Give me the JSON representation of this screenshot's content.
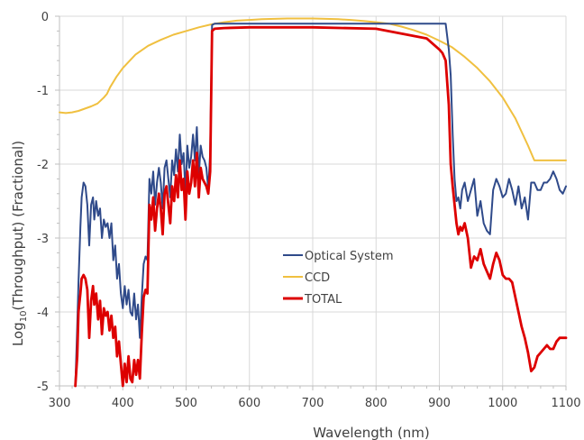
{
  "chart_data": {
    "type": "line",
    "title": "",
    "xlabel": "Wavelength (nm)",
    "ylabel_prefix": "Log",
    "ylabel_sub": "10",
    "ylabel_suffix": "(Throughput) (Fractional)",
    "xlim": [
      300,
      1100
    ],
    "ylim": [
      -5,
      0
    ],
    "xticks": [
      300,
      400,
      500,
      600,
      700,
      800,
      900,
      1000,
      1100
    ],
    "yticks": [
      0,
      -1,
      -2,
      -3,
      -4,
      -5
    ],
    "grid": true,
    "legend_position": "center",
    "series": [
      {
        "name": "Optical System",
        "color": "#2f4a8a",
        "x": [
          325,
          328,
          330,
          333,
          335,
          338,
          341,
          344,
          347,
          350,
          353,
          355,
          358,
          361,
          364,
          367,
          370,
          373,
          376,
          379,
          382,
          385,
          388,
          391,
          394,
          397,
          400,
          403,
          406,
          409,
          412,
          415,
          418,
          421,
          424,
          427,
          430,
          433,
          436,
          439,
          442,
          445,
          448,
          451,
          454,
          457,
          460,
          463,
          466,
          469,
          472,
          475,
          478,
          481,
          484,
          487,
          490,
          493,
          496,
          499,
          502,
          505,
          508,
          511,
          514,
          517,
          520,
          523,
          526,
          529,
          532,
          535,
          538,
          541,
          545,
          560,
          600,
          700,
          800,
          880,
          905,
          910,
          915,
          918,
          921,
          924,
          927,
          930,
          933,
          936,
          940,
          945,
          950,
          955,
          960,
          965,
          970,
          975,
          980,
          985,
          990,
          995,
          1000,
          1005,
          1010,
          1015,
          1020,
          1025,
          1030,
          1035,
          1040,
          1045,
          1050,
          1055,
          1060,
          1065,
          1070,
          1075,
          1080,
          1085,
          1090,
          1095,
          1100
        ],
        "y": [
          -5.0,
          -4.2,
          -3.6,
          -2.85,
          -2.45,
          -2.25,
          -2.3,
          -2.55,
          -3.1,
          -2.55,
          -2.45,
          -2.75,
          -2.5,
          -2.7,
          -2.6,
          -3.0,
          -2.75,
          -2.85,
          -2.8,
          -3.0,
          -2.8,
          -3.3,
          -3.1,
          -3.55,
          -3.35,
          -3.75,
          -3.95,
          -3.65,
          -3.9,
          -3.7,
          -4.0,
          -4.05,
          -3.75,
          -4.1,
          -3.9,
          -4.35,
          -3.8,
          -3.35,
          -3.25,
          -3.3,
          -2.2,
          -2.4,
          -2.1,
          -2.55,
          -2.25,
          -2.05,
          -2.25,
          -2.6,
          -2.05,
          -1.95,
          -2.2,
          -2.45,
          -1.95,
          -2.15,
          -1.8,
          -2.1,
          -1.6,
          -2.0,
          -1.85,
          -2.4,
          -1.75,
          -2.05,
          -1.9,
          -1.6,
          -1.95,
          -1.5,
          -2.15,
          -1.75,
          -1.9,
          -1.95,
          -2.05,
          -2.35,
          -1.85,
          -0.12,
          -0.1,
          -0.1,
          -0.1,
          -0.1,
          -0.1,
          -0.1,
          -0.1,
          -0.1,
          -0.45,
          -0.8,
          -1.6,
          -2.2,
          -2.5,
          -2.45,
          -2.6,
          -2.35,
          -2.25,
          -2.5,
          -2.35,
          -2.2,
          -2.7,
          -2.5,
          -2.8,
          -2.9,
          -2.95,
          -2.35,
          -2.2,
          -2.3,
          -2.45,
          -2.4,
          -2.2,
          -2.35,
          -2.55,
          -2.3,
          -2.6,
          -2.45,
          -2.75,
          -2.25,
          -2.25,
          -2.35,
          -2.35,
          -2.25,
          -2.25,
          -2.2,
          -2.1,
          -2.2,
          -2.35,
          -2.4,
          -2.3
        ]
      },
      {
        "name": "CCD",
        "color": "#f0c040",
        "x": [
          300,
          310,
          320,
          330,
          340,
          350,
          360,
          370,
          375,
          380,
          390,
          400,
          420,
          440,
          460,
          480,
          500,
          520,
          540,
          560,
          580,
          600,
          620,
          640,
          660,
          680,
          700,
          720,
          740,
          760,
          780,
          800,
          820,
          840,
          860,
          880,
          900,
          920,
          940,
          960,
          980,
          1000,
          1020,
          1040,
          1050,
          1060,
          1070,
          1080,
          1090,
          1100
        ],
        "y": [
          -1.3,
          -1.31,
          -1.3,
          -1.28,
          -1.25,
          -1.22,
          -1.18,
          -1.1,
          -1.05,
          -0.96,
          -0.82,
          -0.7,
          -0.52,
          -0.4,
          -0.32,
          -0.25,
          -0.2,
          -0.15,
          -0.11,
          -0.08,
          -0.06,
          -0.05,
          -0.04,
          -0.035,
          -0.03,
          -0.03,
          -0.03,
          -0.035,
          -0.04,
          -0.05,
          -0.065,
          -0.08,
          -0.1,
          -0.14,
          -0.19,
          -0.25,
          -0.33,
          -0.42,
          -0.55,
          -0.7,
          -0.88,
          -1.1,
          -1.38,
          -1.75,
          -1.95,
          -1.95,
          -1.95,
          -1.95,
          -1.95,
          -1.95
        ]
      },
      {
        "name": "TOTAL",
        "color": "#dd0000",
        "x": [
          325,
          328,
          330,
          333,
          335,
          338,
          341,
          344,
          347,
          350,
          353,
          355,
          358,
          361,
          364,
          367,
          370,
          373,
          376,
          379,
          382,
          385,
          388,
          391,
          394,
          397,
          400,
          403,
          406,
          409,
          412,
          415,
          418,
          421,
          424,
          427,
          430,
          433,
          436,
          439,
          442,
          445,
          448,
          451,
          454,
          457,
          460,
          463,
          466,
          469,
          472,
          475,
          478,
          481,
          484,
          487,
          490,
          493,
          496,
          499,
          502,
          505,
          508,
          511,
          514,
          517,
          520,
          523,
          526,
          529,
          532,
          535,
          538,
          541,
          545,
          560,
          600,
          700,
          800,
          880,
          900,
          905,
          910,
          915,
          918,
          921,
          924,
          927,
          930,
          933,
          936,
          940,
          945,
          950,
          955,
          960,
          965,
          970,
          975,
          980,
          985,
          990,
          995,
          1000,
          1005,
          1010,
          1015,
          1020,
          1025,
          1030,
          1035,
          1040,
          1045,
          1050,
          1055,
          1060,
          1065,
          1070,
          1075,
          1080,
          1085,
          1090,
          1095,
          1100
        ],
        "y": [
          -5.0,
          -4.6,
          -4.0,
          -3.75,
          -3.55,
          -3.5,
          -3.55,
          -3.7,
          -4.35,
          -3.85,
          -3.65,
          -3.9,
          -3.75,
          -4.1,
          -3.85,
          -4.3,
          -3.95,
          -4.05,
          -4.0,
          -4.25,
          -4.05,
          -4.35,
          -4.2,
          -4.6,
          -4.4,
          -4.7,
          -5.0,
          -4.7,
          -4.95,
          -4.6,
          -4.9,
          -4.95,
          -4.65,
          -4.85,
          -4.65,
          -4.9,
          -4.3,
          -3.8,
          -3.7,
          -3.75,
          -2.55,
          -2.75,
          -2.45,
          -2.9,
          -2.6,
          -2.4,
          -2.6,
          -2.95,
          -2.4,
          -2.3,
          -2.55,
          -2.8,
          -2.3,
          -2.5,
          -2.15,
          -2.45,
          -1.95,
          -2.35,
          -2.2,
          -2.75,
          -2.1,
          -2.4,
          -2.25,
          -1.95,
          -2.3,
          -1.85,
          -2.45,
          -2.05,
          -2.2,
          -2.25,
          -2.3,
          -2.4,
          -2.1,
          -0.2,
          -0.17,
          -0.16,
          -0.15,
          -0.15,
          -0.17,
          -0.3,
          -0.45,
          -0.5,
          -0.6,
          -1.2,
          -2.0,
          -2.3,
          -2.55,
          -2.8,
          -2.95,
          -2.85,
          -2.9,
          -2.8,
          -3.0,
          -3.4,
          -3.25,
          -3.3,
          -3.15,
          -3.35,
          -3.45,
          -3.55,
          -3.35,
          -3.2,
          -3.3,
          -3.5,
          -3.55,
          -3.55,
          -3.6,
          -3.8,
          -4.0,
          -4.2,
          -4.35,
          -4.55,
          -4.8,
          -4.75,
          -4.6,
          -4.55,
          -4.5,
          -4.45,
          -4.5,
          -4.5,
          -4.4,
          -4.35,
          -4.35,
          -4.35
        ]
      }
    ]
  }
}
